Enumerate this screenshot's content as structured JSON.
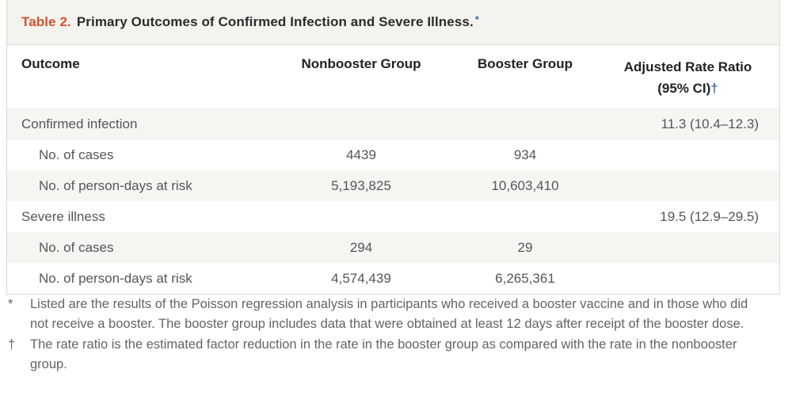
{
  "title": {
    "label": "Table 2.",
    "text": "Primary Outcomes of Confirmed Infection and Severe Illness.",
    "marker": "*"
  },
  "table": {
    "header": {
      "outcome": "Outcome",
      "nonbooster": "Nonbooster Group",
      "booster": "Booster Group",
      "rate_ratio_line1": "Adjusted Rate Ratio",
      "rate_ratio_line2": "(95% CI)",
      "rate_ratio_marker": "†"
    },
    "rows": [
      {
        "outcome": "Confirmed infection",
        "nonbooster": "",
        "booster": "",
        "rate_ratio": "11.3 (10.4–12.3)"
      },
      {
        "outcome": "No. of cases",
        "nonbooster": "4439",
        "booster": "934",
        "rate_ratio": ""
      },
      {
        "outcome": "No. of person-days at risk",
        "nonbooster": "5,193,825",
        "booster": "10,603,410",
        "rate_ratio": ""
      },
      {
        "outcome": "Severe illness",
        "nonbooster": "",
        "booster": "",
        "rate_ratio": "19.5 (12.9–29.5)"
      },
      {
        "outcome": "No. of cases",
        "nonbooster": "294",
        "booster": "29",
        "rate_ratio": ""
      },
      {
        "outcome": "No. of person-days at risk",
        "nonbooster": "4,574,439",
        "booster": "6,265,361",
        "rate_ratio": ""
      }
    ]
  },
  "footnotes": [
    {
      "marker": "*",
      "text": "Listed are the results of the Poisson regression analysis in participants who received a booster vaccine and in those who did not receive a booster. The booster group includes data that were obtained at least 12 days after receipt of the booster dose."
    },
    {
      "marker": "†",
      "text": "The rate ratio is the estimated factor reduction in the rate in the booster group as compared with the rate in the nonbooster group."
    }
  ],
  "colors": {
    "accent_red": "#d5532f",
    "marker_blue": "#3c6cae",
    "title_bar_bg": "#f4f3ee",
    "alt_row_bg": "#f5f5f2",
    "border": "#d9d8d3",
    "header_text": "#202226",
    "body_text": "#55565b",
    "footnote_text": "#636468"
  }
}
